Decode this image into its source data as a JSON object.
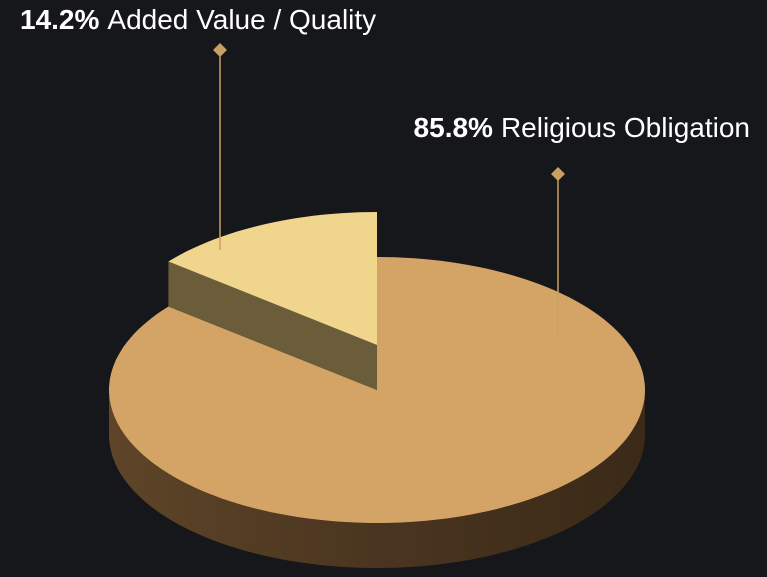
{
  "chart_data": {
    "type": "pie",
    "labels": [
      "Added Value / Quality",
      "Religious Obligation"
    ],
    "values": [
      14.2,
      85.8
    ],
    "value_labels": [
      "14.2%",
      "85.8%"
    ],
    "colors": [
      "#f0d58c",
      "#d4a467"
    ]
  }
}
